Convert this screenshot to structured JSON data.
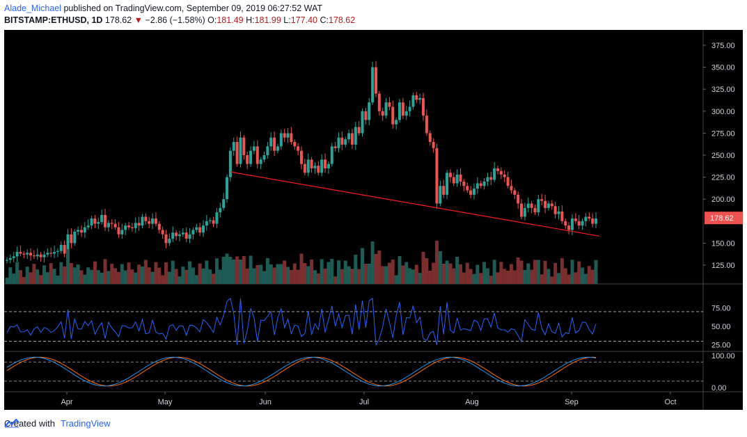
{
  "header": {
    "author": "Alade_Michael",
    "published_text": "published on TradingView.com, September 09, 2019 06:27:52 WAT",
    "symbol": "BITSTAMP:ETHUSD, 1D",
    "last": "178.62",
    "change": "−2.86 (−1.58%)",
    "open_label": "O:",
    "open": "181.49",
    "high_label": "H:",
    "high": "181.99",
    "low_label": "L:",
    "low": "177.40",
    "close_label": "C:",
    "close": "178.62"
  },
  "footer": {
    "created_with": "Created with",
    "brand": "TradingView"
  },
  "colors": {
    "up": "#26a69a",
    "down": "#ef5350",
    "vol_up": "#1e5b55",
    "vol_down": "#7a2e2e",
    "trendline": "#ff1a1a",
    "rsi": "#2962ff",
    "stoch_k": "#2196f3",
    "stoch_d": "#ff6d00",
    "price_tag": "#ef5350"
  },
  "chart_data": {
    "type": "candlestick",
    "y_axis_ticks": [
      "375.00",
      "350.00",
      "325.00",
      "300.00",
      "275.00",
      "250.00",
      "225.00",
      "200.00",
      "150.00",
      "125.00"
    ],
    "last_price_label": "178.62",
    "x_axis_labels": [
      "Apr",
      "May",
      "Jun",
      "Jul",
      "Aug",
      "Sep",
      "Oct"
    ],
    "closes": [
      131,
      133,
      135,
      140,
      138,
      137,
      139,
      136,
      135,
      137,
      134,
      137,
      139,
      138,
      140,
      141,
      148,
      138,
      160,
      150,
      163,
      165,
      162,
      168,
      170,
      178,
      172,
      174,
      182,
      168,
      173,
      172,
      168,
      160,
      165,
      170,
      168,
      167,
      173,
      170,
      180,
      175,
      172,
      178,
      172,
      165,
      160,
      150,
      155,
      162,
      158,
      160,
      162,
      155,
      160,
      165,
      168,
      162,
      170,
      175,
      176,
      172,
      185,
      190,
      200,
      225,
      255,
      265,
      240,
      270,
      250,
      240,
      255,
      260,
      240,
      245,
      250,
      260,
      270,
      255,
      260,
      275,
      270,
      275,
      265,
      260,
      255,
      240,
      230,
      245,
      235,
      238,
      230,
      245,
      235,
      240,
      260,
      258,
      270,
      262,
      268,
      275,
      262,
      282,
      275,
      300,
      290,
      310,
      350,
      320,
      300,
      295,
      310,
      305,
      285,
      290,
      310,
      295,
      300,
      305,
      318,
      313,
      315,
      295,
      275,
      265,
      258,
      195,
      215,
      205,
      230,
      225,
      218,
      228,
      220,
      215,
      210,
      205,
      212,
      218,
      215,
      220,
      225,
      222,
      235,
      232,
      228,
      225,
      215,
      210,
      205,
      195,
      180,
      190,
      195,
      190,
      185,
      200,
      198,
      190,
      195,
      192,
      183,
      186,
      175,
      170,
      165,
      178,
      175,
      170,
      175,
      180,
      178,
      172,
      178
    ],
    "rsi": {
      "ticks": [
        "75.00",
        "50.00",
        "25.00"
      ],
      "levels": [
        70,
        30
      ]
    },
    "stoch": {
      "ticks": [
        "100.00",
        "0.00"
      ],
      "levels": [
        80,
        20
      ]
    },
    "trendline": {
      "start": [
        66,
        231
      ],
      "end": [
        175,
        158
      ]
    }
  }
}
